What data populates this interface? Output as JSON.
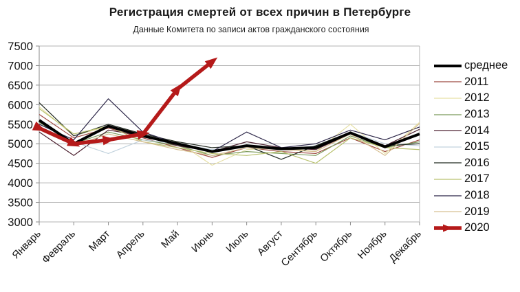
{
  "title": "Регистрация смертей от всех причин в Петербурге",
  "subtitle": "Данные Комитета по записи актов гражданского состояния",
  "chart_data": {
    "type": "line",
    "title": "Регистрация смертей от всех причин в Петербурге",
    "subtitle": "Данные Комитета по записи актов гражданского состояния",
    "xlabel": "",
    "ylabel": "",
    "categories": [
      "Январь",
      "Февраль",
      "Март",
      "Апрель",
      "Май",
      "Июнь",
      "Июль",
      "Август",
      "Сентябрь",
      "Октябрь",
      "Ноябрь",
      "Декабрь"
    ],
    "ylim": [
      3000,
      7500
    ],
    "ytick_step": 500,
    "grid": true,
    "legend_position": "right",
    "series": [
      {
        "name": "среднее",
        "color": "#000000",
        "width": 4,
        "marker": "none",
        "values": [
          5600,
          5000,
          5450,
          5200,
          5000,
          4800,
          4950,
          4870,
          4900,
          5280,
          4920,
          5250
        ]
      },
      {
        "name": "2011",
        "color": "#9e4a42",
        "width": 1.2,
        "marker": "none",
        "values": [
          5750,
          5150,
          5400,
          5150,
          4900,
          4650,
          4900,
          4800,
          4750,
          5150,
          4800,
          5100
        ]
      },
      {
        "name": "2012",
        "color": "#e6e0a5",
        "width": 1.2,
        "marker": "none",
        "values": [
          5950,
          5200,
          5450,
          5250,
          5050,
          4450,
          4850,
          4900,
          4800,
          5500,
          4750,
          5550
        ]
      },
      {
        "name": "2013",
        "color": "#7a9a5a",
        "width": 1.2,
        "marker": "none",
        "values": [
          5550,
          5000,
          5300,
          5100,
          4950,
          4700,
          4800,
          4750,
          4700,
          5200,
          4900,
          5050
        ]
      },
      {
        "name": "2014",
        "color": "#4d2130",
        "width": 1.2,
        "marker": "none",
        "values": [
          5300,
          4700,
          5350,
          5200,
          4950,
          4800,
          5050,
          4900,
          4850,
          5250,
          4950,
          5370
        ]
      },
      {
        "name": "2015",
        "color": "#c2d2dd",
        "width": 1.2,
        "marker": "none",
        "values": [
          5500,
          5050,
          4750,
          5100,
          5000,
          4850,
          4900,
          4850,
          4950,
          5300,
          5000,
          4950
        ]
      },
      {
        "name": "2016",
        "color": "#222a22",
        "width": 1.2,
        "marker": "none",
        "values": [
          6050,
          5200,
          5500,
          5250,
          5050,
          4900,
          4950,
          4600,
          4950,
          5300,
          4950,
          5000
        ]
      },
      {
        "name": "2017",
        "color": "#b9c26f",
        "width": 1.2,
        "marker": "none",
        "values": [
          5900,
          5250,
          5450,
          5050,
          4900,
          4750,
          4700,
          4800,
          4500,
          5150,
          4900,
          4850
        ]
      },
      {
        "name": "2018",
        "color": "#2b2547",
        "width": 1.2,
        "marker": "none",
        "values": [
          5500,
          5100,
          6150,
          5300,
          5000,
          4800,
          5300,
          4900,
          5000,
          5350,
          5100,
          5430
        ]
      },
      {
        "name": "2019",
        "color": "#d8c092",
        "width": 1.2,
        "marker": "none",
        "values": [
          5450,
          4950,
          5250,
          5050,
          4850,
          4700,
          4900,
          4850,
          4800,
          5250,
          4700,
          5520
        ]
      },
      {
        "name": "2020",
        "color": "#b51a1a",
        "width": 5.5,
        "marker": "arrow",
        "values": [
          5400,
          5000,
          5100,
          5250,
          6400,
          7100
        ]
      }
    ]
  }
}
